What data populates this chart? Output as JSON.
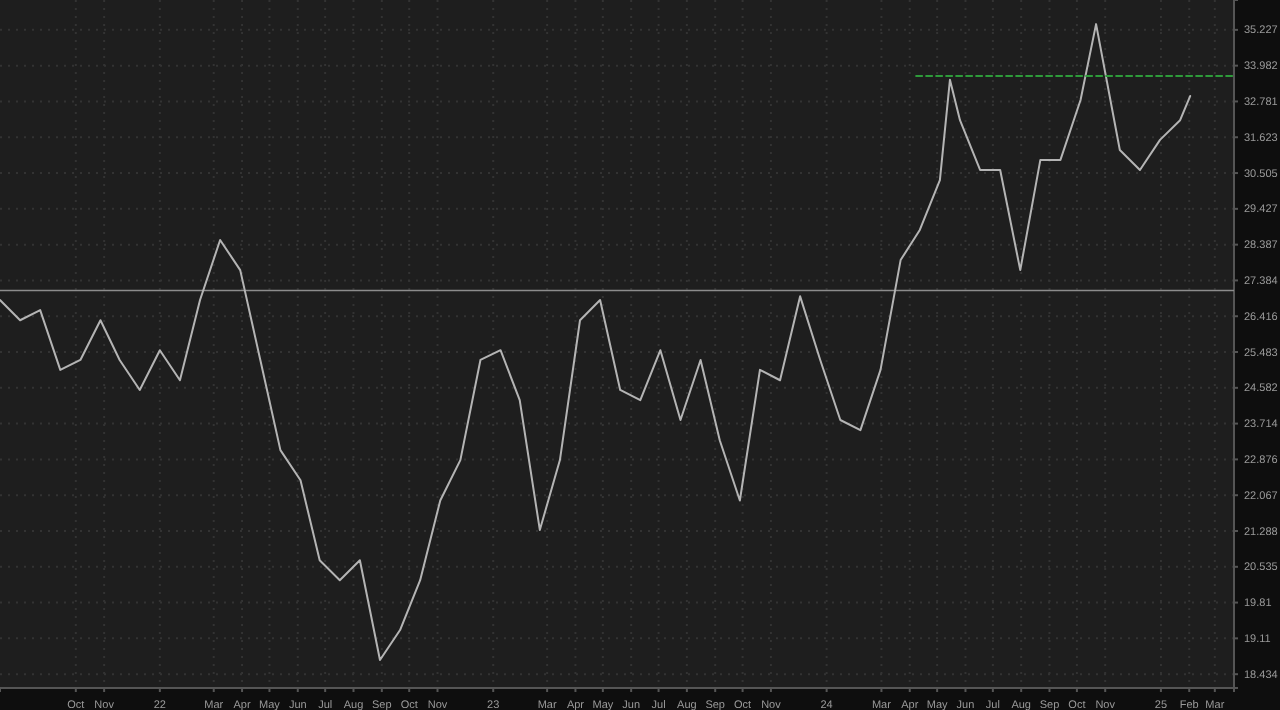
{
  "chart_data": {
    "type": "line",
    "log": true,
    "grid": true,
    "xlim": [
      "2021-07-10",
      "2025-03-22"
    ],
    "ylim": [
      18.18,
      36.3
    ],
    "xticks": [
      {
        "value": "2021-10-01",
        "label": "Oct"
      },
      {
        "value": "2021-11-01",
        "label": "Nov"
      },
      {
        "value": "2022-01-01",
        "label": "22"
      },
      {
        "value": "2022-03-01",
        "label": "Mar"
      },
      {
        "value": "2022-04-01",
        "label": "Apr"
      },
      {
        "value": "2022-05-01",
        "label": "May"
      },
      {
        "value": "2022-06-01",
        "label": "Jun"
      },
      {
        "value": "2022-07-01",
        "label": "Jul"
      },
      {
        "value": "2022-08-01",
        "label": "Aug"
      },
      {
        "value": "2022-09-01",
        "label": "Sep"
      },
      {
        "value": "2022-10-01",
        "label": "Oct"
      },
      {
        "value": "2022-11-01",
        "label": "Nov"
      },
      {
        "value": "2023-01-01",
        "label": "23"
      },
      {
        "value": "2023-03-01",
        "label": "Mar"
      },
      {
        "value": "2023-04-01",
        "label": "Apr"
      },
      {
        "value": "2023-05-01",
        "label": "May"
      },
      {
        "value": "2023-06-01",
        "label": "Jun"
      },
      {
        "value": "2023-07-01",
        "label": "Jul"
      },
      {
        "value": "2023-08-01",
        "label": "Aug"
      },
      {
        "value": "2023-09-01",
        "label": "Sep"
      },
      {
        "value": "2023-10-01",
        "label": "Oct"
      },
      {
        "value": "2023-11-01",
        "label": "Nov"
      },
      {
        "value": "2024-01-01",
        "label": "24"
      },
      {
        "value": "2024-03-01",
        "label": "Mar"
      },
      {
        "value": "2024-04-01",
        "label": "Apr"
      },
      {
        "value": "2024-05-01",
        "label": "May"
      },
      {
        "value": "2024-06-01",
        "label": "Jun"
      },
      {
        "value": "2024-07-01",
        "label": "Jul"
      },
      {
        "value": "2024-08-01",
        "label": "Aug"
      },
      {
        "value": "2024-09-01",
        "label": "Sep"
      },
      {
        "value": "2024-10-01",
        "label": "Oct"
      },
      {
        "value": "2024-11-01",
        "label": "Nov"
      },
      {
        "value": "2025-01-01",
        "label": "25"
      },
      {
        "value": "2025-02-01",
        "label": "Feb"
      },
      {
        "value": "2025-03-01",
        "label": "Mar"
      }
    ],
    "yticks": [
      18.434,
      19.11,
      19.81,
      20.535,
      21.288,
      22.067,
      22.876,
      23.714,
      24.582,
      25.483,
      26.416,
      27.384,
      28.387,
      29.427,
      30.505,
      31.623,
      32.781,
      33.982,
      35.227
    ],
    "ref_lines": [
      {
        "axis": "y",
        "value": 27.11,
        "color": "#8c8c8c"
      }
    ],
    "series": [
      {
        "color": "#b4b4b4",
        "x": [
          "2021-07-10",
          "2021-08-01",
          "2021-08-23",
          "2021-09-14",
          "2021-10-06",
          "2021-10-28",
          "2021-11-18",
          "2021-12-10",
          "2022-01-01",
          "2022-01-23",
          "2022-02-14",
          "2022-03-08",
          "2022-03-30",
          "2022-04-21",
          "2022-05-13",
          "2022-06-04",
          "2022-06-25",
          "2022-07-17",
          "2022-08-08",
          "2022-08-30",
          "2022-09-21",
          "2022-10-13",
          "2022-11-04",
          "2022-11-26",
          "2022-12-18",
          "2023-01-09",
          "2023-01-30",
          "2023-02-21",
          "2023-03-15",
          "2023-04-06",
          "2023-04-28",
          "2023-05-20",
          "2023-06-11",
          "2023-07-03",
          "2023-07-25",
          "2023-08-16",
          "2023-09-06",
          "2023-09-28",
          "2023-10-20",
          "2023-11-11",
          "2023-12-03",
          "2023-12-25",
          "2024-01-16",
          "2024-02-07",
          "2024-02-29",
          "2024-03-22",
          "2024-04-12",
          "2024-05-04",
          "2024-05-15",
          "2024-05-26",
          "2024-06-17",
          "2024-07-09",
          "2024-07-31",
          "2024-08-22",
          "2024-09-13",
          "2024-10-05",
          "2024-10-22",
          "2024-11-17",
          "2024-12-09",
          "2024-12-31",
          "2025-01-22",
          "2025-02-02"
        ],
        "values": [
          26.85,
          26.31,
          26.58,
          25.03,
          25.28,
          26.31,
          25.28,
          24.53,
          25.53,
          24.77,
          26.85,
          28.52,
          27.67,
          25.28,
          23.09,
          22.4,
          20.67,
          20.26,
          20.67,
          18.7,
          19.27,
          20.26,
          21.95,
          22.86,
          25.28,
          25.53,
          24.28,
          21.31,
          22.86,
          26.31,
          26.85,
          24.53,
          24.28,
          25.53,
          23.8,
          25.28,
          23.32,
          21.95,
          25.03,
          24.77,
          26.95,
          25.28,
          23.8,
          23.56,
          25.03,
          27.95,
          28.81,
          30.29,
          33.5,
          32.17,
          30.6,
          30.6,
          27.67,
          30.91,
          30.91,
          32.83,
          35.43,
          31.22,
          30.6,
          31.54,
          32.17,
          32.96
        ]
      },
      {
        "color": "#2e9a3a",
        "line_style": "dashed",
        "x": [
          "2024-04-08",
          "2025-03-22"
        ],
        "values": [
          33.63,
          33.63
        ]
      }
    ]
  }
}
